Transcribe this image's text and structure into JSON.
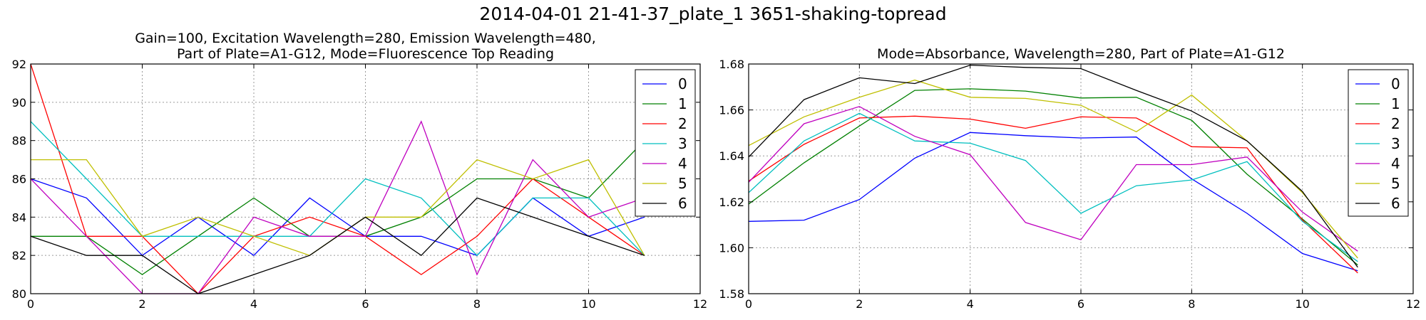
{
  "suptitle": "2014-04-01 21-41-37_plate_1 3651-shaking-topread",
  "colors": {
    "series": [
      "#0000ff",
      "#008000",
      "#ff0000",
      "#00bfbf",
      "#bf00bf",
      "#bfbf00",
      "#000000"
    ],
    "grid": "#9a9a9a",
    "axes": "#000000"
  },
  "chart_data": [
    {
      "type": "line",
      "title": [
        "Gain=100, Excitation Wavelength=280, Emission Wavelength=480,",
        "Part of Plate=A1-G12, Mode=Fluorescence Top Reading"
      ],
      "xlabel": "",
      "ylabel": "",
      "xlim": [
        0,
        12
      ],
      "ylim": [
        80,
        92
      ],
      "xticks": [
        0,
        2,
        4,
        6,
        8,
        10,
        12
      ],
      "yticks": [
        80,
        82,
        84,
        86,
        88,
        90,
        92
      ],
      "grid": true,
      "legend": "top-right",
      "x": [
        0,
        1,
        2,
        3,
        4,
        5,
        6,
        7,
        8,
        9,
        10,
        11
      ],
      "series": [
        {
          "name": "0",
          "values": [
            86,
            85,
            82,
            84,
            82,
            85,
            83,
            83,
            82,
            85,
            83,
            84
          ]
        },
        {
          "name": "1",
          "values": [
            83,
            83,
            81,
            83,
            85,
            83,
            83,
            84,
            86,
            86,
            85,
            88
          ]
        },
        {
          "name": "2",
          "values": [
            92,
            83,
            83,
            80,
            83,
            84,
            83,
            81,
            83,
            86,
            84,
            82
          ]
        },
        {
          "name": "3",
          "values": [
            89,
            86,
            83,
            83,
            83,
            83,
            86,
            85,
            82,
            85,
            85,
            82
          ]
        },
        {
          "name": "4",
          "values": [
            86,
            83,
            80,
            80,
            84,
            83,
            83,
            89,
            81,
            87,
            84,
            85
          ]
        },
        {
          "name": "5",
          "values": [
            87,
            87,
            83,
            84,
            83,
            82,
            84,
            84,
            87,
            86,
            87,
            82
          ]
        },
        {
          "name": "6",
          "values": [
            83,
            82,
            82,
            80,
            81,
            82,
            84,
            82,
            85,
            84,
            83,
            82
          ]
        }
      ]
    },
    {
      "type": "line",
      "title": [
        "Mode=Absorbance, Wavelength=280, Part of Plate=A1-G12"
      ],
      "xlabel": "",
      "ylabel": "",
      "xlim": [
        0,
        12
      ],
      "ylim": [
        1.58,
        1.68
      ],
      "xticks": [
        0,
        2,
        4,
        6,
        8,
        10,
        12
      ],
      "yticks": [
        1.58,
        1.6,
        1.62,
        1.64,
        1.66,
        1.68
      ],
      "grid": true,
      "legend": "top-right",
      "x": [
        0,
        1,
        2,
        3,
        4,
        5,
        6,
        7,
        8,
        9,
        10,
        11
      ],
      "series": [
        {
          "name": "0",
          "values": [
            1.6115,
            1.612,
            1.621,
            1.639,
            1.6502,
            1.6488,
            1.6478,
            1.6482,
            1.63,
            1.615,
            1.5975,
            1.59
          ]
        },
        {
          "name": "1",
          "values": [
            1.619,
            1.637,
            1.653,
            1.6685,
            1.6692,
            1.6682,
            1.6652,
            1.6655,
            1.6555,
            1.632,
            1.6125,
            1.5925
          ]
        },
        {
          "name": "2",
          "values": [
            1.629,
            1.645,
            1.6565,
            1.6573,
            1.656,
            1.652,
            1.657,
            1.6565,
            1.644,
            1.6435,
            1.612,
            1.589
          ]
        },
        {
          "name": "3",
          "values": [
            1.624,
            1.6465,
            1.6585,
            1.6465,
            1.6455,
            1.638,
            1.615,
            1.627,
            1.6295,
            1.6375,
            1.6115,
            1.594
          ]
        },
        {
          "name": "4",
          "values": [
            1.6285,
            1.654,
            1.6615,
            1.6485,
            1.6405,
            1.611,
            1.6035,
            1.6362,
            1.6362,
            1.6395,
            1.6155,
            1.5985
          ]
        },
        {
          "name": "5",
          "values": [
            1.6445,
            1.657,
            1.6655,
            1.673,
            1.6655,
            1.665,
            1.662,
            1.6505,
            1.6665,
            1.6465,
            1.624,
            1.5955
          ]
        },
        {
          "name": "6",
          "values": [
            1.6395,
            1.6645,
            1.674,
            1.6715,
            1.6795,
            1.6785,
            1.678,
            1.6685,
            1.6595,
            1.6465,
            1.6245,
            1.5915
          ]
        }
      ]
    }
  ]
}
